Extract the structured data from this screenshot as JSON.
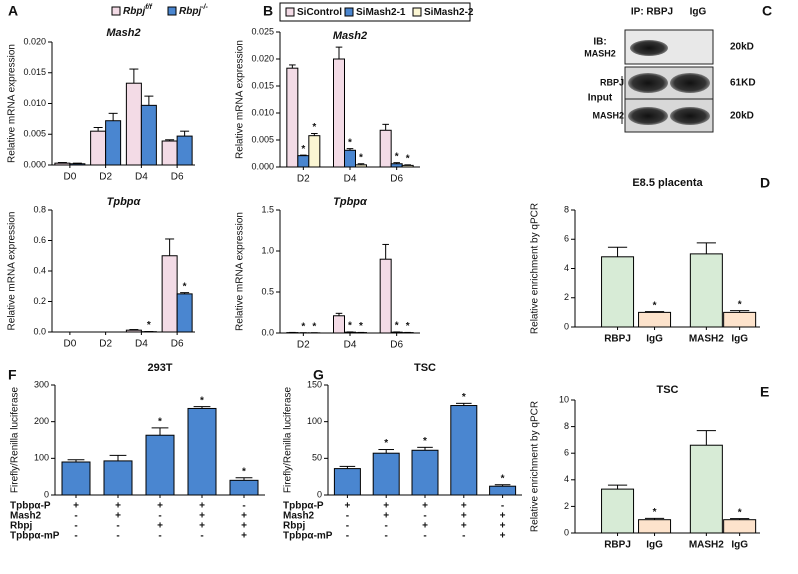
{
  "chart_data": [
    {
      "type": "bar",
      "panel": "A",
      "title": "Mash2",
      "ylabel": "Relative mRNA expression",
      "categories": [
        "D0",
        "D2",
        "D4",
        "D6"
      ],
      "series": [
        {
          "name": "Rbpj",
          "name_sup": "f/f",
          "color": "#f3dbe6",
          "values": [
            0.0003,
            0.0055,
            0.0133,
            0.0039
          ],
          "errors": [
            0.0001,
            0.0006,
            0.0023,
            0.0002
          ]
        },
        {
          "name": "Rbpj",
          "name_sup": "-/-",
          "color": "#4a86d0",
          "values": [
            0.0002,
            0.0072,
            0.0097,
            0.0047
          ],
          "errors": [
            0.0001,
            0.0012,
            0.0015,
            0.0008
          ]
        }
      ],
      "ylim": [
        0,
        0.02
      ],
      "yticks": [
        {
          "value": 0,
          "label": "0.000"
        },
        0.005,
        {
          "value": 0.01,
          "label": "0.010"
        },
        0.015,
        {
          "value": 0.02,
          "label": "0.020"
        }
      ]
    },
    {
      "type": "bar",
      "title": "Tpbpα",
      "ylabel": "Relative mRNA expression",
      "categories": [
        "D0",
        "D2",
        "D4",
        "D6"
      ],
      "series": [
        {
          "color": "#f3dbe6",
          "values": [
            0,
            0,
            0.012,
            0.5
          ],
          "errors": [
            0,
            0,
            0.004,
            0.11
          ]
        },
        {
          "color": "#4a86d0",
          "values": [
            0,
            0,
            0.002,
            0.25
          ],
          "errors": [
            0,
            0,
            0.001,
            0.008
          ],
          "significance": [
            null,
            null,
            "*",
            "*"
          ]
        }
      ],
      "ylim": [
        0,
        0.8
      ],
      "yticks": [
        {
          "value": 0,
          "label": "0.0"
        },
        0.2,
        0.4,
        0.6,
        0.8
      ]
    },
    {
      "type": "bar",
      "panel": "B",
      "title": "Mash2",
      "ylabel": "Relative mRNA expression",
      "categories": [
        "D2",
        "D4",
        "D6"
      ],
      "series": [
        {
          "name": "SiControl",
          "color": "#f3dbe6",
          "values": [
            0.0183,
            0.02,
            0.0068
          ],
          "errors": [
            0.0006,
            0.0022,
            0.0011
          ]
        },
        {
          "name": "SiMash2-1",
          "color": "#4a86d0",
          "values": [
            0.0021,
            0.0031,
            0.0006
          ],
          "errors": [
            0.0001,
            0.0003,
            0.0002
          ],
          "significance": [
            "*",
            "*",
            "*"
          ]
        },
        {
          "name": "SiMash2-2",
          "color": "#fbf6d3",
          "values": [
            0.0058,
            0.0004,
            0.0003
          ],
          "errors": [
            0.0004,
            0.0002,
            0.0001
          ],
          "significance": [
            "*",
            "*",
            "*"
          ]
        }
      ],
      "ylim": [
        0,
        0.025
      ],
      "yticks": [
        {
          "value": 0,
          "label": "0.000"
        },
        0.005,
        {
          "value": 0.01,
          "label": "0.010"
        },
        0.015,
        {
          "value": 0.02,
          "label": "0.020"
        },
        0.025
      ]
    },
    {
      "type": "bar",
      "title": "Tpbpα",
      "ylabel": "Relative mRNA expression",
      "categories": [
        "D2",
        "D4",
        "D6"
      ],
      "series": [
        {
          "color": "#f3dbe6",
          "values": [
            0.005,
            0.21,
            0.9
          ],
          "errors": [
            0.002,
            0.03,
            0.18
          ]
        },
        {
          "color": "#4a86d0",
          "values": [
            0.002,
            0.01,
            0.01
          ],
          "errors": [
            0.001,
            0.003,
            0.003
          ],
          "significance": [
            "*",
            "*",
            "*"
          ]
        },
        {
          "color": "#fbf6d3",
          "values": [
            0.002,
            0.005,
            0.005
          ],
          "errors": [
            0.001,
            0.002,
            0.002
          ],
          "significance": [
            "*",
            "*",
            "*"
          ]
        }
      ],
      "ylim": [
        0,
        1.5
      ],
      "yticks": [
        {
          "value": 0,
          "label": "0.0"
        },
        0.5,
        {
          "value": 1,
          "label": "1.0"
        },
        1.5
      ]
    },
    {
      "type": "bar",
      "panel": "D",
      "title": "E8.5 placenta",
      "ylabel": "Relative enrichment by qPCR",
      "categories": [
        "RBPJ",
        "IgG",
        "MASH2",
        "IgG"
      ],
      "series": [
        {
          "colors": [
            "#d7ebd6",
            "#fde3cc",
            "#d7ebd6",
            "#fde3cc"
          ],
          "values": [
            4.8,
            1.0,
            5.0,
            1.0
          ],
          "errors": [
            0.65,
            0.05,
            0.75,
            0.12
          ],
          "significance": [
            null,
            "*",
            null,
            "*"
          ]
        }
      ],
      "ylim": [
        0,
        8
      ],
      "yticks": [
        0,
        2,
        4,
        6,
        8
      ]
    },
    {
      "type": "bar",
      "panel": "E",
      "title": "TSC",
      "ylabel": "Relative enrichment by qPCR",
      "categories": [
        "RBPJ",
        "IgG",
        "MASH2",
        "IgG"
      ],
      "series": [
        {
          "colors": [
            "#d7ebd6",
            "#fde3cc",
            "#d7ebd6",
            "#fde3cc"
          ],
          "values": [
            3.3,
            1.0,
            6.6,
            1.0
          ],
          "errors": [
            0.3,
            0.1,
            1.1,
            0.08
          ],
          "significance": [
            null,
            "*",
            null,
            "*"
          ]
        }
      ],
      "ylim": [
        0,
        10
      ],
      "yticks": [
        0,
        2,
        4,
        6,
        8,
        10
      ]
    },
    {
      "type": "bar",
      "panel": "F",
      "title": "293T",
      "ylabel": "Firefly/Renilla luciferase",
      "categories": [
        null,
        null,
        null,
        null,
        null
      ],
      "series": [
        {
          "color": "#4a86d0",
          "values": [
            90,
            93,
            163,
            236,
            40
          ],
          "errors": [
            6,
            15,
            20,
            5,
            7
          ],
          "significance": [
            null,
            null,
            "*",
            "*",
            "*"
          ]
        }
      ],
      "ylim": [
        0,
        300
      ],
      "yticks": [
        0,
        100,
        200,
        300
      ],
      "conditions": [
        {
          "label": "Tpbpα-P",
          "marks": [
            "+",
            "+",
            "+",
            "+",
            "-"
          ]
        },
        {
          "label": "Mash2",
          "marks": [
            "-",
            "+",
            "-",
            "+",
            "+"
          ]
        },
        {
          "label": "Rbpj",
          "marks": [
            "-",
            "-",
            "+",
            "+",
            "+"
          ]
        },
        {
          "label": "Tpbpα-mP",
          "marks": [
            "-",
            "-",
            "-",
            "-",
            "+"
          ]
        }
      ]
    },
    {
      "type": "bar",
      "panel": "G",
      "title": "TSC",
      "ylabel": "Firefly/Renilla luciferase",
      "categories": [
        null,
        null,
        null,
        null,
        null
      ],
      "series": [
        {
          "color": "#4a86d0",
          "values": [
            36,
            57,
            61,
            122,
            12
          ],
          "errors": [
            3,
            5,
            4,
            3,
            2
          ],
          "significance": [
            null,
            "*",
            "*",
            "*",
            "*"
          ]
        }
      ],
      "ylim": [
        0,
        150
      ],
      "yticks": [
        0,
        50,
        100,
        150
      ],
      "conditions": [
        {
          "label": "Tpbpα-P",
          "marks": [
            "+",
            "+",
            "+",
            "+",
            "-"
          ]
        },
        {
          "label": "Mash2",
          "marks": [
            "-",
            "+",
            "-",
            "+",
            "+"
          ]
        },
        {
          "label": "Rbpj",
          "marks": [
            "-",
            "-",
            "+",
            "+",
            "+"
          ]
        },
        {
          "label": "Tpbpα-mP",
          "marks": [
            "-",
            "-",
            "-",
            "-",
            "+"
          ]
        }
      ]
    }
  ],
  "blot": {
    "panel": "C",
    "ip": "IP: RBPJ",
    "igg": "IgG",
    "ib": "IB:",
    "ib_target": "MASH2",
    "ib_size": "20kD",
    "input": "Input",
    "input_rows": [
      {
        "label": "RBPJ",
        "size": "61KD"
      },
      {
        "label": "MASH2",
        "size": "20kD"
      }
    ]
  }
}
